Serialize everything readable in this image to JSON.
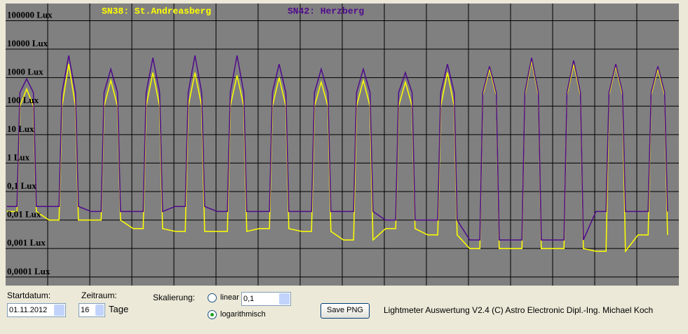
{
  "chart_data": {
    "type": "line",
    "series": [
      {
        "name": "SN38: St.Andreasberg",
        "color": "#ffff00",
        "values": [
          0.02,
          0.02,
          100,
          400,
          100,
          0.02,
          0.01,
          0.01,
          100,
          3000,
          100,
          0.01,
          0.01,
          0.01,
          100,
          800,
          100,
          0.01,
          0.005,
          0.005,
          100,
          1500,
          100,
          0.005,
          0.004,
          0.004,
          100,
          1500,
          100,
          0.004,
          0.004,
          0.004,
          100,
          1200,
          100,
          0.004,
          0.005,
          0.005,
          100,
          1000,
          100,
          0.005,
          0.004,
          0.004,
          100,
          700,
          100,
          0.004,
          0.002,
          0.002,
          100,
          800,
          100,
          0.002,
          0.005,
          0.005,
          100,
          700,
          100,
          0.005,
          0.003,
          0.003,
          100,
          1500,
          100,
          0.003,
          0.001,
          0.001,
          250,
          2000,
          250,
          0.001,
          0.001,
          0.001,
          250,
          4000,
          250,
          0.001,
          0.001,
          0.001,
          250,
          3000,
          250,
          0.001,
          0.0008,
          0.0008,
          250,
          2500,
          250,
          0.0008,
          0.003,
          0.003,
          250,
          2000,
          250,
          0.003
        ]
      },
      {
        "name": "SN42: Herzberg",
        "color": "#4f0a8c",
        "values": [
          0.03,
          0.03,
          300,
          900,
          300,
          0.03,
          0.03,
          0.03,
          300,
          6000,
          300,
          0.03,
          0.02,
          0.02,
          300,
          2000,
          300,
          0.02,
          0.02,
          0.02,
          300,
          5000,
          300,
          0.02,
          0.03,
          0.03,
          300,
          6000,
          300,
          0.03,
          0.02,
          0.02,
          300,
          6000,
          300,
          0.02,
          0.02,
          0.02,
          300,
          3000,
          300,
          0.02,
          0.02,
          0.02,
          300,
          2000,
          300,
          0.02,
          0.02,
          0.02,
          300,
          2000,
          300,
          0.02,
          0.01,
          0.01,
          300,
          1500,
          300,
          0.01,
          0.01,
          0.01,
          300,
          3000,
          300,
          0.01,
          0.002,
          0.002,
          300,
          2500,
          300,
          0.002,
          0.002,
          0.002,
          300,
          5000,
          300,
          0.002,
          0.002,
          0.002,
          300,
          4000,
          300,
          0.002,
          0.02,
          0.02,
          300,
          3000,
          300,
          0.02,
          0.02,
          0.02,
          300,
          2500,
          300,
          0.02
        ]
      }
    ],
    "x": [
      0.03,
      0.27,
      0.34,
      0.5,
      0.66,
      0.73,
      1.03,
      1.27,
      1.34,
      1.5,
      1.66,
      1.73,
      2.03,
      2.27,
      2.34,
      2.5,
      2.66,
      2.73,
      3.03,
      3.27,
      3.34,
      3.5,
      3.66,
      3.73,
      4.03,
      4.27,
      4.34,
      4.5,
      4.66,
      4.73,
      5.03,
      5.27,
      5.34,
      5.5,
      5.66,
      5.73,
      6.03,
      6.27,
      6.34,
      6.5,
      6.66,
      6.73,
      7.03,
      7.27,
      7.34,
      7.5,
      7.66,
      7.73,
      8.03,
      8.27,
      8.34,
      8.5,
      8.66,
      8.73,
      9.03,
      9.27,
      9.34,
      9.5,
      9.66,
      9.73,
      10.03,
      10.27,
      10.34,
      10.5,
      10.66,
      10.73,
      11.03,
      11.27,
      11.34,
      11.5,
      11.66,
      11.73,
      12.03,
      12.27,
      12.34,
      12.5,
      12.66,
      12.73,
      13.03,
      13.27,
      13.34,
      13.5,
      13.66,
      13.73,
      14.03,
      14.27,
      14.34,
      14.5,
      14.66,
      14.73,
      15.03,
      15.27,
      15.34,
      15.5,
      15.66,
      15.73
    ],
    "xlim": [
      0,
      16
    ],
    "xticks": [
      1,
      2,
      3,
      4,
      5,
      6,
      7,
      8,
      9,
      10,
      11,
      12,
      13,
      14,
      15
    ],
    "ylim": [
      5e-05,
      400000
    ],
    "yticks": [
      {
        "value": 100000,
        "label": "100000 Lux"
      },
      {
        "value": 10000,
        "label": "10000 Lux"
      },
      {
        "value": 1000,
        "label": "1000 Lux"
      },
      {
        "value": 100,
        "label": "100 Lux"
      },
      {
        "value": 10,
        "label": "10 Lux"
      },
      {
        "value": 1,
        "label": "1 Lux"
      },
      {
        "value": 0.1,
        "label": "0,1 Lux"
      },
      {
        "value": 0.01,
        "label": "0,01 Lux"
      },
      {
        "value": 0.001,
        "label": "0,001 Lux"
      },
      {
        "value": 0.0001,
        "label": "0,0001 Lux"
      }
    ],
    "log_scale": true,
    "grid": true
  },
  "controls": {
    "start_label": "Startdatum:",
    "start_value": "01.11.2012",
    "range_label": "Zeitraum:",
    "range_value": "16",
    "range_unit": "Tage",
    "scale_label": "Skalierung:",
    "linear_label": "linear",
    "linear_value": "0,1",
    "log_label": "logarithmisch",
    "save_button": "Save PNG",
    "footer": "Lightmeter Auswertung V2.4  (C) Astro Electronic Dipl.-Ing. Michael Koch"
  }
}
